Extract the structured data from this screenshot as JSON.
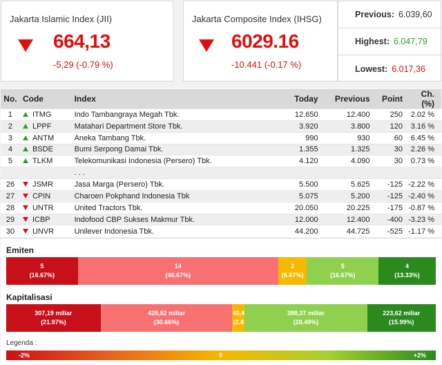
{
  "jii": {
    "title": "Jakarta Islamic Index (JII)",
    "value": "664,13",
    "change": "-5,29 (-0.79 %)"
  },
  "ihsg": {
    "title": "Jakarta Composite Index (IHSG)",
    "value": "6029.16",
    "change": "-10.441 (-0.17 %)"
  },
  "stats": {
    "previous_label": "Previous:",
    "previous_value": "6.039,60",
    "highest_label": "Highest:",
    "highest_value": "6.047,79",
    "lowest_label": "Lowest:",
    "lowest_value": "6.017,36"
  },
  "table": {
    "headers": [
      "No.",
      "Code",
      "Index",
      "Today",
      "Previous",
      "Point",
      "Ch. (%)"
    ],
    "top_rows": [
      {
        "no": "1",
        "code": "ITMG",
        "name": "Indo Tambangraya Megah Tbk.",
        "today": "12.650",
        "previous": "12.400",
        "point": "250",
        "ch": "2.02 %",
        "dir": "up"
      },
      {
        "no": "2",
        "code": "LPPF",
        "name": "Matahari Department Store Tbk.",
        "today": "3.920",
        "previous": "3.800",
        "point": "120",
        "ch": "3.16 %",
        "dir": "up"
      },
      {
        "no": "3",
        "code": "ANTM",
        "name": "Aneka Tambang Tbk.",
        "today": "990",
        "previous": "930",
        "point": "60",
        "ch": "6.45 %",
        "dir": "up"
      },
      {
        "no": "4",
        "code": "BSDE",
        "name": "Bumi Serpong Damai Tbk.",
        "today": "1.355",
        "previous": "1.325",
        "point": "30",
        "ch": "2.26 %",
        "dir": "up"
      },
      {
        "no": "5",
        "code": "TLKM",
        "name": "Telekomunikasi Indonesia (Persero) Tbk.",
        "today": "4.120",
        "previous": "4.090",
        "point": "30",
        "ch": "0.73 %",
        "dir": "up"
      }
    ],
    "ellipsis": ". . .",
    "bottom_rows": [
      {
        "no": "26",
        "code": "JSMR",
        "name": "Jasa Marga (Persero) Tbk.",
        "today": "5.500",
        "previous": "5.625",
        "point": "-125",
        "ch": "-2.22 %",
        "dir": "down"
      },
      {
        "no": "27",
        "code": "CPIN",
        "name": "Charoen Pokphand Indonesia Tbk",
        "today": "5.075",
        "previous": "5.200",
        "point": "-125",
        "ch": "-2.40 %",
        "dir": "down"
      },
      {
        "no": "28",
        "code": "UNTR",
        "name": "United Tractors Tbk.",
        "today": "20.050",
        "previous": "20.225",
        "point": "-175",
        "ch": "-0.87 %",
        "dir": "down"
      },
      {
        "no": "29",
        "code": "ICBP",
        "name": "Indofood CBP Sukses Makmur Tbk.",
        "today": "12.000",
        "previous": "12.400",
        "point": "-400",
        "ch": "-3.23 %",
        "dir": "down"
      },
      {
        "no": "30",
        "code": "UNVR",
        "name": "Unilever Indonesia Tbk.",
        "today": "44.200",
        "previous": "44.725",
        "point": "-525",
        "ch": "-1.17 %",
        "dir": "down"
      }
    ]
  },
  "emiten": {
    "title": "Emiten",
    "segments": [
      {
        "line1": "5",
        "line2": "(16.67%)",
        "share": 16.67,
        "color": "#c8101a"
      },
      {
        "line1": "14",
        "line2": "(46.67%)",
        "share": 46.67,
        "color": "#f87171"
      },
      {
        "line1": "2",
        "line2": "(6.67%)",
        "share": 6.67,
        "color": "#f6b800"
      },
      {
        "line1": "5",
        "line2": "(16.67%)",
        "share": 16.67,
        "color": "#8fd14f"
      },
      {
        "line1": "4",
        "line2": "(13.33%)",
        "share": 13.33,
        "color": "#2a8a1e"
      }
    ]
  },
  "kapitalisasi": {
    "title": "Kapitalisasi",
    "segments": [
      {
        "line1": "307,19 miliar",
        "line2": "(21.97%)",
        "share": 21.97,
        "color": "#c8101a"
      },
      {
        "line1": "428,82 miliar",
        "line2": "(30.66%)",
        "share": 30.66,
        "color": "#f87171"
      },
      {
        "line1": "40,4",
        "line2": "(2.8",
        "share": 2.89,
        "color": "#f6b800"
      },
      {
        "line1": "398,37 miliar",
        "line2": "(28.49%)",
        "share": 28.49,
        "color": "#8fd14f"
      },
      {
        "line1": "223,62 miliar",
        "line2": "(15.99%)",
        "share": 15.99,
        "color": "#2a8a1e"
      }
    ]
  },
  "legend": {
    "title": "Legenda :",
    "min": "-2%",
    "mid": "0",
    "max": "+2%"
  }
}
